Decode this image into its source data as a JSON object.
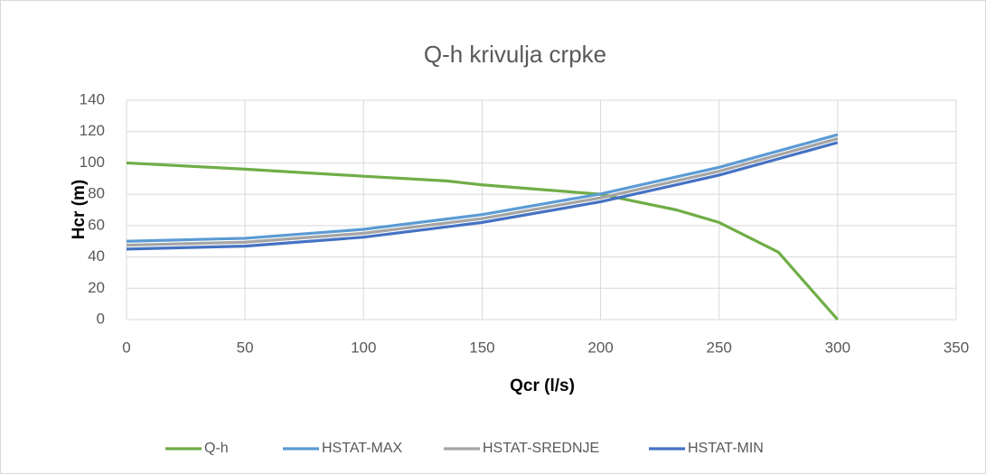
{
  "chart_data": {
    "type": "line",
    "title": "Q-h krivulja crpke",
    "x_label": "Qcr (l/s)",
    "y_label": "Hcr (m)",
    "xlim": [
      0,
      350
    ],
    "xticks": [
      0,
      50,
      100,
      150,
      200,
      250,
      300,
      350
    ],
    "ylim": [
      0,
      140
    ],
    "yticks": [
      0,
      20,
      40,
      60,
      80,
      100,
      120,
      140
    ],
    "grid": true,
    "legend": "bottom",
    "series": [
      {
        "name": "Q-h",
        "color": "#70ad47",
        "x": [
          0,
          50,
          100,
          135,
          150,
          200,
          232,
          250,
          275,
          300
        ],
        "values": [
          100,
          96,
          91.5,
          88.5,
          86,
          80,
          70,
          62,
          43,
          0
        ]
      },
      {
        "name": "HSTAT-MAX",
        "color": "#5b9bd5",
        "x": [
          0,
          50,
          100,
          150,
          200,
          250,
          300
        ],
        "values": [
          50,
          51.9,
          57.6,
          67,
          80.2,
          97.2,
          118
        ]
      },
      {
        "name": "HSTAT-SREDNJE",
        "color": "#a5a5a5",
        "x": [
          0,
          50,
          100,
          150,
          200,
          250,
          300
        ],
        "values": [
          47.5,
          49.4,
          55.1,
          64.5,
          77.7,
          94.7,
          115.5
        ]
      },
      {
        "name": "HSTAT-MIN",
        "color": "#4472c4",
        "x": [
          0,
          50,
          100,
          150,
          200,
          250,
          300
        ],
        "values": [
          45,
          46.9,
          52.6,
          62,
          75.2,
          92.2,
          113
        ]
      }
    ]
  }
}
